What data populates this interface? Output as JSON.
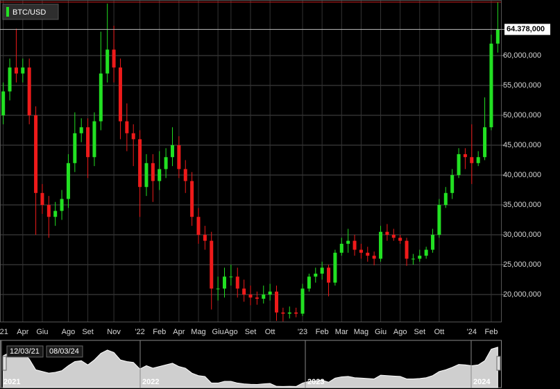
{
  "chart_data": {
    "type": "candlestick",
    "name": "BTC/USD",
    "up_color": "#22e022",
    "down_color": "#ee1a1a",
    "grid": true,
    "last_close_label": "64.378,000",
    "categories": [
      "'21",
      null,
      null,
      "Apr",
      null,
      null,
      "Giu",
      null,
      null,
      null,
      "Ago",
      null,
      null,
      "Set",
      null,
      null,
      null,
      "Nov",
      null,
      null,
      null,
      "'22",
      null,
      null,
      "Feb",
      null,
      null,
      "Apr",
      null,
      null,
      "Mag",
      null,
      null,
      "Giu",
      null,
      "Ago",
      null,
      null,
      "Set",
      null,
      null,
      "Ott",
      null,
      null,
      null,
      null,
      "'23",
      null,
      null,
      "Feb",
      null,
      null,
      "Mar",
      null,
      null,
      "Mag",
      null,
      null,
      "Giu",
      null,
      null,
      "Ago",
      null,
      null,
      "Set",
      null,
      null,
      "Ott",
      null,
      null,
      null,
      null,
      "'24",
      null,
      null,
      "Feb",
      null
    ],
    "open": [
      50000000,
      54000000,
      58000000,
      57000000,
      58000000,
      50000000,
      37000000,
      35000000,
      33000000,
      34000000,
      36000000,
      42000000,
      47000000,
      48000000,
      43000000,
      49000000,
      57000000,
      61000000,
      58000000,
      49000000,
      47000000,
      46000000,
      38000000,
      42000000,
      39000000,
      41000000,
      43000000,
      45000000,
      41000000,
      39000000,
      33000000,
      30000000,
      29000000,
      21000000,
      21000000,
      23000000,
      23000000,
      21000000,
      20000000,
      19500000,
      19300000,
      20000000,
      20500000,
      17000000,
      16800000,
      17000000,
      16800000,
      21000000,
      23000000,
      23500000,
      24500000,
      22000000,
      27000000,
      28500000,
      29000000,
      27500000,
      27000000,
      26500000,
      26000000,
      30500000,
      30000000,
      29500000,
      29000000,
      26000000,
      26000000,
      26500000,
      27500000,
      30000000,
      35000000,
      37000000,
      40000000,
      43500000,
      43000000,
      42000000,
      43000000,
      48000000,
      62000000
    ],
    "high": [
      55500000,
      59500000,
      64500000,
      59500000,
      59500000,
      51500000,
      38500000,
      36500000,
      35500000,
      37500000,
      43500000,
      50500000,
      49500000,
      49500000,
      50500000,
      64000000,
      68700000,
      65000000,
      59500000,
      52000000,
      48500000,
      47500000,
      43500000,
      43500000,
      44000000,
      44500000,
      48000000,
      46500000,
      42500000,
      40500000,
      34500000,
      31500000,
      30500000,
      23000000,
      24500000,
      25000000,
      24500000,
      22500000,
      21500000,
      20500000,
      21500000,
      21800000,
      21500000,
      17800000,
      18000000,
      17800000,
      21800000,
      23500000,
      24500000,
      25500000,
      25000000,
      27500000,
      29500000,
      31000000,
      30000000,
      28500000,
      28000000,
      27200000,
      31500000,
      31800000,
      31000000,
      30000000,
      29500000,
      26800000,
      27500000,
      28000000,
      31000000,
      36000000,
      38000000,
      41000000,
      44500000,
      44500000,
      48500000,
      44000000,
      53000000,
      63500000,
      69000000
    ],
    "low": [
      48500000,
      52500000,
      55500000,
      55500000,
      48500000,
      30000000,
      33500000,
      29500000,
      31500000,
      32500000,
      34500000,
      40500000,
      45500000,
      39500000,
      41500000,
      47500000,
      55500000,
      55500000,
      46000000,
      44000000,
      41500000,
      33000000,
      36500000,
      35500000,
      37500000,
      39500000,
      41500000,
      39500000,
      37000000,
      31500000,
      28500000,
      27500000,
      17500000,
      19000000,
      19500000,
      21500000,
      19500000,
      18800000,
      18200000,
      18300000,
      18500000,
      19000000,
      15600000,
      15500000,
      16000000,
      16200000,
      16400000,
      20500000,
      22000000,
      22500000,
      19700000,
      21500000,
      26500000,
      27000000,
      26500000,
      26000000,
      25500000,
      24900000,
      25500000,
      29000000,
      29000000,
      28500000,
      24800000,
      25000000,
      25500000,
      26000000,
      27000000,
      29500000,
      34500000,
      36000000,
      39500000,
      41000000,
      38500000,
      41500000,
      42500000,
      47500000,
      60500000
    ],
    "close": [
      54000000,
      58000000,
      57000000,
      58000000,
      50000000,
      37000000,
      35000000,
      33000000,
      34000000,
      36000000,
      42000000,
      47000000,
      48000000,
      43000000,
      49000000,
      57000000,
      61000000,
      58000000,
      49000000,
      47000000,
      46000000,
      38000000,
      42000000,
      39000000,
      41000000,
      43000000,
      45000000,
      41000000,
      39000000,
      33000000,
      30000000,
      29000000,
      21000000,
      21000000,
      23000000,
      23000000,
      21000000,
      20000000,
      19500000,
      19300000,
      20000000,
      20500000,
      17000000,
      16800000,
      17000000,
      16800000,
      21000000,
      23000000,
      23500000,
      24500000,
      22000000,
      27000000,
      28500000,
      29000000,
      27500000,
      27000000,
      26500000,
      26000000,
      30500000,
      30000000,
      29500000,
      29000000,
      26000000,
      26000000,
      26500000,
      27500000,
      30000000,
      35000000,
      37000000,
      40000000,
      43500000,
      43000000,
      42000000,
      43000000,
      48000000,
      62000000,
      64378000
    ],
    "ylim": [
      15470000,
      69300000
    ],
    "yticks": [
      {
        "value": 20000000,
        "label": "20,000,000"
      },
      {
        "value": 25000000,
        "label": "25,000,000"
      },
      {
        "value": 30000000,
        "label": "30,000,000"
      },
      {
        "value": 35000000,
        "label": "35,000,000"
      },
      {
        "value": 40000000,
        "label": "40,000,000"
      },
      {
        "value": 45000000,
        "label": "45,000,000"
      },
      {
        "value": 50000000,
        "label": "50,000,000"
      },
      {
        "value": 55000000,
        "label": "55,000,000"
      },
      {
        "value": 60000000,
        "label": "60,000,000"
      }
    ],
    "navigator": {
      "years": [
        "2021",
        "2022",
        "2023",
        "2024"
      ],
      "range_start": "12/03/21",
      "range_end": "08/03/24"
    }
  }
}
